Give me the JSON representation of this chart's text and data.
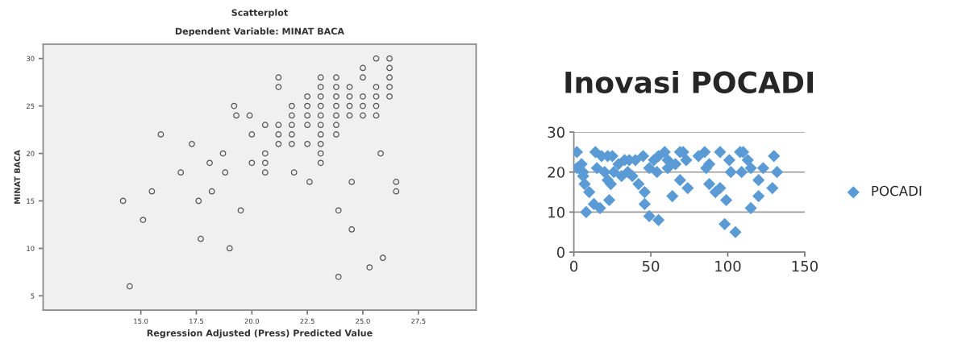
{
  "chart_data": [
    {
      "type": "scatter",
      "title": "Scatterplot",
      "subtitle": "Dependent Variable: MINAT BACA",
      "xlabel": "Regression Adjusted (Press) Predicted Value",
      "ylabel": "MINAT BACA",
      "marker": "circle",
      "grid": false,
      "legend": false,
      "xlim": [
        10.6,
        30.1
      ],
      "ylim": [
        3.5,
        31.5
      ],
      "xticks": [
        {
          "value": 15,
          "label": "15.0"
        },
        {
          "value": 17.5,
          "label": "17.5"
        },
        {
          "value": 20,
          "label": "20.0"
        },
        {
          "value": 22.5,
          "label": "22.5"
        },
        {
          "value": 25,
          "label": "25.0"
        },
        {
          "value": 27.5,
          "label": "27.5"
        }
      ],
      "yticks": [
        5,
        10,
        15,
        20,
        25,
        30
      ],
      "series": [
        {
          "color": "#555555",
          "x": [
            14.2,
            14.5,
            15.1,
            15.5,
            15.9,
            16.8,
            17.3,
            17.6,
            17.7,
            18.1,
            18.2,
            18.7,
            18.8,
            19.0,
            19.2,
            19.3,
            19.5,
            19.9,
            20.0,
            20.0,
            20.6,
            20.6,
            20.6,
            20.6,
            21.2,
            21.2,
            21.2,
            21.2,
            21.2,
            21.8,
            21.8,
            21.8,
            21.8,
            21.8,
            21.9,
            22.5,
            22.5,
            22.5,
            22.5,
            22.5,
            22.6,
            23.1,
            23.1,
            23.1,
            23.1,
            23.1,
            23.1,
            23.1,
            23.1,
            23.1,
            23.1,
            23.8,
            23.8,
            23.8,
            23.8,
            23.8,
            23.8,
            23.8,
            23.9,
            23.9,
            24.4,
            24.4,
            24.4,
            24.4,
            24.5,
            24.5,
            25.0,
            25.0,
            25.0,
            25.0,
            25.0,
            25.3,
            25.6,
            25.6,
            25.6,
            25.6,
            25.6,
            25.8,
            25.9,
            26.2,
            26.2,
            26.2,
            26.2,
            26.2,
            26.5,
            26.5
          ],
          "values": [
            15,
            6,
            13,
            16,
            22,
            18,
            21,
            15,
            11,
            19,
            16,
            20,
            18,
            10,
            25,
            24,
            14,
            24,
            22,
            19,
            23,
            20,
            19,
            18,
            28,
            27,
            23,
            22,
            21,
            25,
            24,
            23,
            22,
            21,
            18,
            26,
            25,
            24,
            23,
            21,
            17,
            28,
            27,
            26,
            25,
            24,
            23,
            22,
            21,
            20,
            19,
            28,
            27,
            26,
            25,
            24,
            23,
            22,
            14,
            7,
            27,
            26,
            25,
            24,
            17,
            12,
            29,
            28,
            26,
            25,
            24,
            8,
            30,
            27,
            26,
            25,
            24,
            20,
            9,
            30,
            29,
            28,
            27,
            26,
            17,
            16
          ]
        }
      ]
    },
    {
      "type": "scatter",
      "title": "Inovasi POCADI",
      "marker": "diamond",
      "grid": "y",
      "legend": "right",
      "xlim": [
        0,
        150
      ],
      "ylim": [
        0,
        30
      ],
      "xticks": [
        0,
        50,
        100,
        150
      ],
      "yticks": [
        0,
        10,
        20,
        30
      ],
      "series": [
        {
          "name": "POCADI",
          "color": "#5b9bd5",
          "x": [
            2,
            2,
            5,
            6,
            6,
            7,
            8,
            10,
            13,
            14,
            15,
            17,
            18,
            20,
            22,
            22,
            23,
            24,
            25,
            26,
            29,
            31,
            33,
            35,
            36,
            38,
            40,
            42,
            45,
            46,
            46,
            49,
            49,
            52,
            54,
            55,
            55,
            59,
            61,
            61,
            64,
            66,
            69,
            69,
            71,
            73,
            74,
            81,
            85,
            86,
            88,
            88,
            92,
            95,
            95,
            98,
            99,
            101,
            102,
            105,
            108,
            109,
            110,
            113,
            115,
            115,
            120,
            120,
            123,
            129,
            130,
            132
          ],
          "values": [
            25,
            21,
            22,
            19,
            20,
            17,
            10,
            15,
            12,
            25,
            21,
            11,
            24,
            20,
            24,
            18,
            13,
            17,
            24,
            20,
            22,
            19,
            23,
            20,
            23,
            19,
            23,
            17,
            24,
            15,
            12,
            9,
            21,
            23,
            20,
            8,
            24,
            25,
            21,
            23,
            14,
            22,
            25,
            18,
            25,
            23,
            16,
            24,
            25,
            21,
            22,
            17,
            15,
            16,
            25,
            7,
            13,
            23,
            20,
            5,
            25,
            20,
            25,
            23,
            21,
            11,
            18,
            14,
            21,
            16,
            24,
            20
          ]
        }
      ]
    }
  ]
}
